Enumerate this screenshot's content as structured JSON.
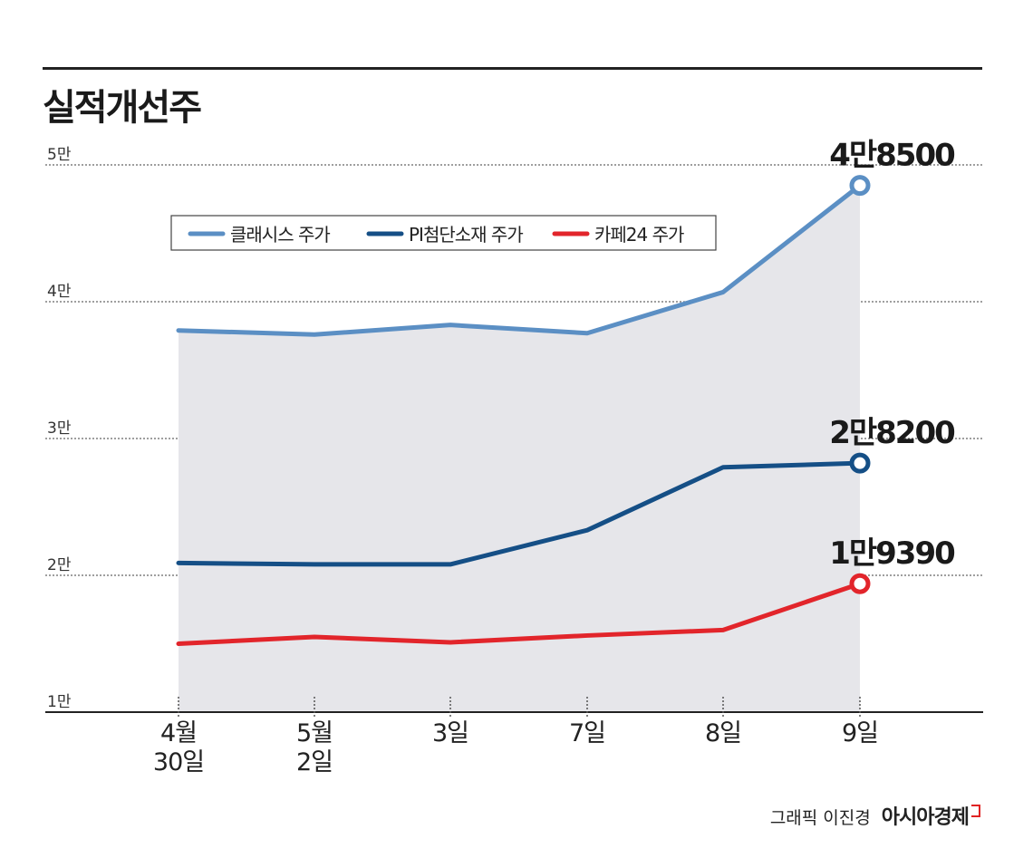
{
  "title": "실적개선주",
  "credit": {
    "byline": "그래픽 이진경",
    "brand": "아시아경제"
  },
  "chart_data": {
    "type": "line",
    "title": "실적개선주",
    "categories": [
      [
        "4월",
        "30일"
      ],
      [
        "5월",
        "2일"
      ],
      [
        "3일"
      ],
      [
        "7일"
      ],
      [
        "8일"
      ],
      [
        "9일"
      ]
    ],
    "ylim": [
      10000,
      50000
    ],
    "yticks": [
      10000,
      20000,
      30000,
      40000,
      50000
    ],
    "ytick_labels": [
      "1만",
      "2만",
      "3만",
      "4만",
      "5만"
    ],
    "grid": true,
    "legend_position": "top-left",
    "series": [
      {
        "name": "클래시스 주가",
        "color": "#5b8fc4",
        "values": [
          37900,
          37600,
          38300,
          37700,
          40700,
          48500
        ],
        "end_label": "4만8500"
      },
      {
        "name": "PI첨단소재 주가",
        "color": "#154f86",
        "values": [
          20900,
          20800,
          20800,
          23300,
          27900,
          28200
        ],
        "end_label": "2만8200"
      },
      {
        "name": "카페24 주가",
        "color": "#e2252b",
        "values": [
          15000,
          15500,
          15100,
          15600,
          16000,
          19390
        ],
        "end_label": "1만9390"
      }
    ]
  }
}
